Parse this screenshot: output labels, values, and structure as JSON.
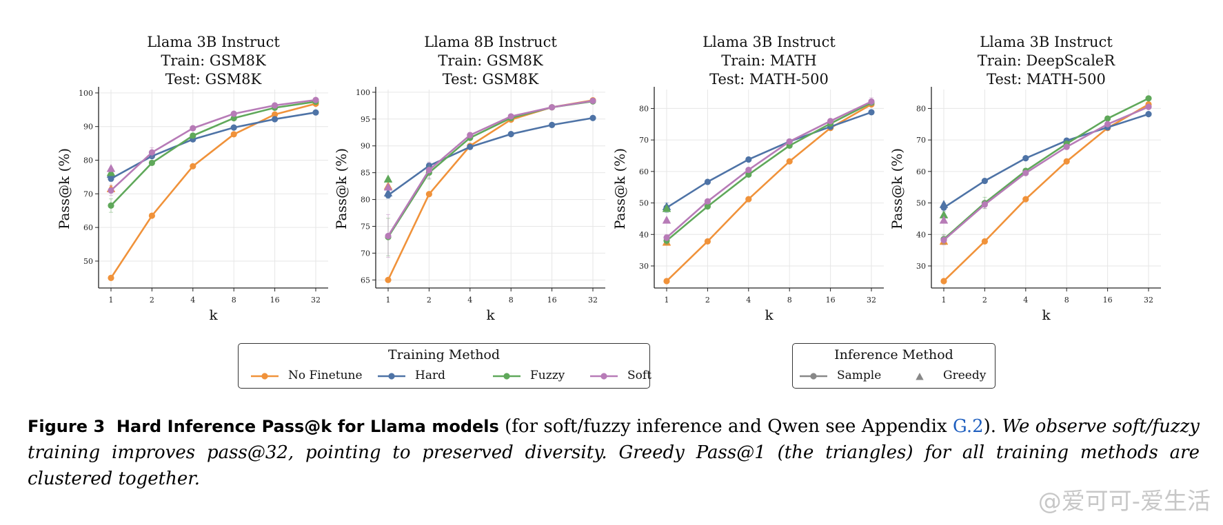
{
  "colors": {
    "no_finetune": "#f0923a",
    "hard": "#4e73a6",
    "fuzzy": "#5fa85a",
    "soft": "#b77bb7",
    "inference_marker": "#888888",
    "link": "#1f5fbf"
  },
  "chart_data": [
    {
      "type": "line",
      "title_lines": [
        "Llama 3B Instruct",
        "Train: GSM8K",
        "Test: GSM8K"
      ],
      "xlabel": "k",
      "ylabel": "Pass@k (%)",
      "x_tick_labels": [
        "1",
        "2",
        "4",
        "8",
        "16",
        "32"
      ],
      "x": [
        1,
        2,
        4,
        8,
        16,
        32
      ],
      "x_scale": "log2",
      "ylim": [
        42,
        101
      ],
      "y_ticks": [
        50,
        60,
        70,
        80,
        90,
        100
      ],
      "grid": true,
      "series": [
        {
          "name": "No Finetune",
          "color_key": "no_finetune",
          "values": [
            45.0,
            63.5,
            78.2,
            87.7,
            93.6,
            96.8
          ],
          "greedy": 71.5,
          "err": [
            0,
            0,
            0,
            0,
            0,
            0
          ]
        },
        {
          "name": "Hard",
          "color_key": "hard",
          "values": [
            74.5,
            81.2,
            86.2,
            89.7,
            92.2,
            94.2
          ],
          "greedy": 75.8,
          "err": [
            0.8,
            0.5,
            0,
            0,
            0,
            0
          ]
        },
        {
          "name": "Fuzzy",
          "color_key": "fuzzy",
          "values": [
            66.5,
            79.2,
            87.3,
            92.5,
            95.6,
            97.4
          ],
          "greedy": 76.3,
          "err": [
            2.0,
            0.6,
            0,
            0,
            0,
            0
          ]
        },
        {
          "name": "Soft",
          "color_key": "soft",
          "values": [
            71.0,
            82.3,
            89.5,
            93.8,
            96.3,
            97.9
          ],
          "greedy": 77.5,
          "err": [
            1.5,
            1.4,
            0,
            0,
            0,
            0.6
          ]
        }
      ]
    },
    {
      "type": "line",
      "title_lines": [
        "Llama 8B Instruct",
        "Train: GSM8K",
        "Test: GSM8K"
      ],
      "xlabel": "k",
      "ylabel": "Pass@k (%)",
      "x_tick_labels": [
        "1",
        "2",
        "4",
        "8",
        "16",
        "32"
      ],
      "x": [
        1,
        2,
        4,
        8,
        16,
        32
      ],
      "x_scale": "log2",
      "ylim": [
        63.5,
        100.5
      ],
      "y_ticks": [
        65,
        70,
        75,
        80,
        85,
        90,
        95,
        100
      ],
      "grid": true,
      "series": [
        {
          "name": "No Finetune",
          "color_key": "no_finetune",
          "values": [
            65.0,
            81.0,
            90.0,
            94.9,
            97.2,
            98.5
          ],
          "greedy": 82.5,
          "err": [
            0,
            0,
            0,
            0,
            0,
            0
          ]
        },
        {
          "name": "Hard",
          "color_key": "hard",
          "values": [
            80.8,
            86.3,
            89.8,
            92.2,
            93.9,
            95.2
          ],
          "greedy": 81.2,
          "err": [
            0.6,
            0.5,
            0,
            0,
            0,
            0
          ]
        },
        {
          "name": "Fuzzy",
          "color_key": "fuzzy",
          "values": [
            73.0,
            85.0,
            91.5,
            95.2,
            97.2,
            98.3
          ],
          "greedy": 83.8,
          "err": [
            3.5,
            1.2,
            0.4,
            0,
            0,
            0
          ]
        },
        {
          "name": "Soft",
          "color_key": "soft",
          "values": [
            73.2,
            85.5,
            92.0,
            95.5,
            97.2,
            98.4
          ],
          "greedy": 82.3,
          "err": [
            4.0,
            1.5,
            0.5,
            0,
            0,
            0
          ]
        }
      ]
    },
    {
      "type": "line",
      "title_lines": [
        "Llama 3B Instruct",
        "Train: MATH",
        "Test: MATH-500"
      ],
      "xlabel": "k",
      "ylabel": "Pass@k (%)",
      "x_tick_labels": [
        "1",
        "2",
        "4",
        "8",
        "16",
        "32"
      ],
      "x": [
        1,
        2,
        4,
        8,
        16,
        32
      ],
      "x_scale": "log2",
      "ylim": [
        23,
        86
      ],
      "y_ticks": [
        30,
        40,
        50,
        60,
        70,
        80
      ],
      "grid": true,
      "series": [
        {
          "name": "No Finetune",
          "color_key": "no_finetune",
          "values": [
            25.2,
            37.8,
            51.2,
            63.2,
            73.8,
            81.3
          ],
          "greedy": 37.5,
          "err": [
            0,
            0,
            0,
            0,
            0,
            0
          ]
        },
        {
          "name": "Hard",
          "color_key": "hard",
          "values": [
            48.5,
            56.7,
            63.8,
            69.5,
            74.2,
            78.8
          ],
          "greedy": 48.8,
          "err": [
            1.5,
            0.5,
            0,
            0,
            0,
            0
          ]
        },
        {
          "name": "Fuzzy",
          "color_key": "fuzzy",
          "values": [
            38.0,
            48.9,
            59.0,
            68.2,
            75.2,
            81.8
          ],
          "greedy": 48.2,
          "err": [
            1.2,
            0.5,
            0.4,
            0,
            0,
            0
          ]
        },
        {
          "name": "Soft",
          "color_key": "soft",
          "values": [
            39.0,
            50.5,
            60.5,
            69.5,
            76.0,
            82.2
          ],
          "greedy": 44.5,
          "err": [
            1.0,
            0.6,
            0.5,
            0,
            0,
            1.2
          ]
        }
      ]
    },
    {
      "type": "line",
      "title_lines": [
        "Llama 3B Instruct",
        "Train: DeepScaleR",
        "Test: MATH-500"
      ],
      "xlabel": "k",
      "ylabel": "Pass@k (%)",
      "x_tick_labels": [
        "1",
        "2",
        "4",
        "8",
        "16",
        "32"
      ],
      "x": [
        1,
        2,
        4,
        8,
        16,
        32
      ],
      "x_scale": "log2",
      "ylim": [
        23,
        86
      ],
      "y_ticks": [
        30,
        40,
        50,
        60,
        70,
        80
      ],
      "grid": true,
      "series": [
        {
          "name": "No Finetune",
          "color_key": "no_finetune",
          "values": [
            25.2,
            37.8,
            51.2,
            63.2,
            73.8,
            81.3
          ],
          "greedy": 37.8,
          "err": [
            0,
            0,
            0,
            0,
            0,
            0
          ]
        },
        {
          "name": "Hard",
          "color_key": "hard",
          "values": [
            48.5,
            57.0,
            64.2,
            69.8,
            74.0,
            78.2
          ],
          "greedy": 49.5,
          "err": [
            1.2,
            0.5,
            0,
            0,
            0,
            0
          ]
        },
        {
          "name": "Fuzzy",
          "color_key": "fuzzy",
          "values": [
            38.5,
            50.0,
            60.2,
            68.8,
            76.8,
            83.2
          ],
          "greedy": 46.2,
          "err": [
            1.5,
            1.8,
            0.6,
            0,
            0,
            0
          ]
        },
        {
          "name": "Soft",
          "color_key": "soft",
          "values": [
            38.2,
            49.5,
            59.5,
            67.8,
            75.0,
            80.5
          ],
          "greedy": 44.5,
          "err": [
            1.5,
            1.2,
            0.6,
            0.4,
            0,
            0
          ]
        }
      ]
    }
  ],
  "legend_training": {
    "title": "Training Method",
    "items": [
      {
        "label": "No Finetune",
        "color_key": "no_finetune"
      },
      {
        "label": "Hard",
        "color_key": "hard"
      },
      {
        "label": "Fuzzy",
        "color_key": "fuzzy"
      },
      {
        "label": "Soft",
        "color_key": "soft"
      }
    ]
  },
  "legend_inference": {
    "title": "Inference Method",
    "items": [
      {
        "label": "Sample",
        "marker": "circle-line"
      },
      {
        "label": "Greedy",
        "marker": "triangle"
      }
    ]
  },
  "caption": {
    "figure_label": "Figure 3",
    "bold_title": "Hard Inference Pass@k for Llama models",
    "text_before_ref": " (for soft/fuzzy inference and Qwen see Appendix ",
    "ref": "G.2",
    "text_after_ref": "). ",
    "italic_text": "We observe soft/fuzzy training improves pass@32, pointing to preserved diversity. Greedy Pass@1 (the triangles) for all training methods are clustered together."
  },
  "watermark": "@爱可可-爱生活"
}
